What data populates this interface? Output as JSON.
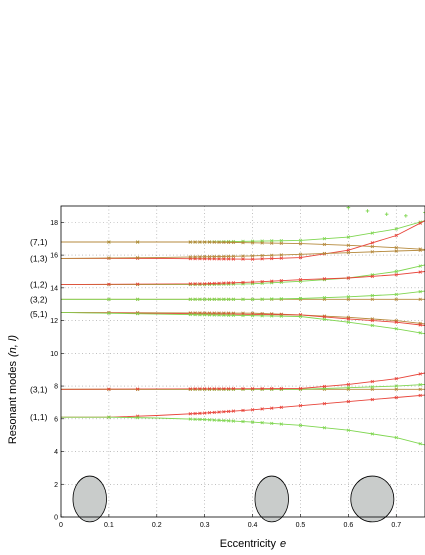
{
  "chart_data": {
    "type": "line",
    "title": "",
    "xlabel": "Eccentricity",
    "xlabel_var": "e",
    "ylabel": "Resonant modes",
    "ylabel_var": "(n, l)",
    "xlim": [
      0,
      0.76
    ],
    "ylim": [
      0,
      19
    ],
    "grid": true,
    "xticks": [
      0,
      0.1,
      0.2,
      0.3,
      0.4,
      0.5,
      0.6,
      0.7
    ],
    "xtick_labels": [
      "0",
      "0.1",
      "0.2",
      "0.3",
      "0.4",
      "0.5",
      "0.6",
      "0.7"
    ],
    "yticks": [
      0,
      2,
      4,
      6,
      8,
      10,
      12,
      14,
      16,
      18
    ],
    "ytick_labels": [
      "0",
      "2",
      "4",
      "6",
      "8",
      "10",
      "12",
      "14",
      "16",
      "18"
    ],
    "mode_labels": [
      {
        "text": "(7,1)",
        "y": 16.8
      },
      {
        "text": "(1,3)",
        "y": 15.8
      },
      {
        "text": "(1,2)",
        "y": 14.2
      },
      {
        "text": "(3,2)",
        "y": 13.3
      },
      {
        "text": "(5,1)",
        "y": 12.4
      },
      {
        "text": "(3,1)",
        "y": 7.8
      },
      {
        "text": "(1,1)",
        "y": 6.1
      }
    ],
    "markers_x": [
      0.1,
      0.16,
      0.27,
      0.28,
      0.29,
      0.3,
      0.31,
      0.32,
      0.33,
      0.34,
      0.35,
      0.36,
      0.38,
      0.4,
      0.42,
      0.44,
      0.46,
      0.5,
      0.55,
      0.6,
      0.65,
      0.7,
      0.75
    ],
    "series": [
      {
        "color": "#7fd650",
        "x": [
          0,
          0.3,
          0.5,
          0.6,
          0.7,
          0.76
        ],
        "values": [
          16.8,
          16.8,
          16.9,
          17.1,
          17.6,
          18.1
        ]
      },
      {
        "color": "#b5893c",
        "x": [
          0,
          0.3,
          0.5,
          0.6,
          0.7,
          0.76
        ],
        "values": [
          16.8,
          16.8,
          16.7,
          16.6,
          16.45,
          16.35
        ]
      },
      {
        "color": "#e8443a",
        "x": [
          0,
          0.2,
          0.4,
          0.5,
          0.6,
          0.7,
          0.76
        ],
        "values": [
          15.8,
          15.8,
          15.75,
          15.85,
          16.3,
          17.2,
          18.1
        ]
      },
      {
        "color": "#b5893c",
        "x": [
          0,
          0.2,
          0.4,
          0.5,
          0.6,
          0.7,
          0.76
        ],
        "values": [
          15.8,
          15.85,
          15.95,
          16.05,
          16.15,
          16.25,
          16.3
        ]
      },
      {
        "color": "#7fd650",
        "x": [
          0,
          0.3,
          0.4,
          0.5,
          0.6,
          0.7,
          0.76
        ],
        "values": [
          14.2,
          14.2,
          14.25,
          14.4,
          14.6,
          15.0,
          15.4
        ]
      },
      {
        "color": "#e8443a",
        "x": [
          0,
          0.3,
          0.4,
          0.5,
          0.6,
          0.7,
          0.76
        ],
        "values": [
          14.2,
          14.25,
          14.35,
          14.5,
          14.6,
          14.8,
          15.0
        ]
      },
      {
        "color": "#b5893c",
        "x": [
          0,
          0.4,
          0.5,
          0.6,
          0.7,
          0.76
        ],
        "values": [
          13.3,
          13.3,
          13.3,
          13.3,
          13.3,
          13.3
        ]
      },
      {
        "color": "#7fd650",
        "x": [
          0,
          0.4,
          0.5,
          0.6,
          0.7,
          0.76
        ],
        "values": [
          13.3,
          13.3,
          13.35,
          13.45,
          13.6,
          13.8
        ]
      },
      {
        "color": "#b5893c",
        "x": [
          0,
          0.4,
          0.5,
          0.6,
          0.7,
          0.76
        ],
        "values": [
          12.5,
          12.45,
          12.35,
          12.2,
          12.0,
          11.8
        ]
      },
      {
        "color": "#e8443a",
        "x": [
          0,
          0.5,
          0.6,
          0.7,
          0.76
        ],
        "values": [
          12.5,
          12.35,
          12.1,
          11.9,
          11.7
        ]
      },
      {
        "color": "#7fd650",
        "x": [
          0,
          0.5,
          0.6,
          0.7,
          0.76
        ],
        "values": [
          12.5,
          12.25,
          11.9,
          11.5,
          11.2
        ]
      },
      {
        "color": "#b5893c",
        "x": [
          0,
          0.5,
          0.6,
          0.7,
          0.76
        ],
        "values": [
          7.8,
          7.8,
          7.8,
          7.8,
          7.8
        ]
      },
      {
        "color": "#7fd650",
        "x": [
          0,
          0.5,
          0.6,
          0.7,
          0.76
        ],
        "values": [
          7.8,
          7.8,
          7.9,
          8.0,
          8.1
        ]
      },
      {
        "color": "#e8443a",
        "x": [
          0,
          0.5,
          0.6,
          0.7,
          0.76
        ],
        "values": [
          7.8,
          7.85,
          8.1,
          8.45,
          8.8
        ]
      },
      {
        "color": "#e8443a",
        "x": [
          0,
          0.1,
          0.2,
          0.3,
          0.4,
          0.5,
          0.6,
          0.7,
          0.76
        ],
        "values": [
          6.1,
          6.1,
          6.2,
          6.35,
          6.55,
          6.8,
          7.05,
          7.3,
          7.45
        ]
      },
      {
        "color": "#7fd650",
        "x": [
          0,
          0.1,
          0.2,
          0.3,
          0.4,
          0.5,
          0.6,
          0.7,
          0.76
        ],
        "values": [
          6.1,
          6.1,
          6.05,
          5.95,
          5.8,
          5.6,
          5.3,
          4.85,
          4.4
        ]
      }
    ],
    "scatter_points": {
      "color": "#7fd650",
      "x": [
        0.6,
        0.64,
        0.68,
        0.72,
        0.76
      ],
      "values": [
        18.9,
        18.7,
        18.5,
        18.4,
        18.6
      ]
    },
    "ellipses": [
      {
        "cx": 0.06,
        "cy": 1.1,
        "rx": 0.035,
        "ry": 1.4
      },
      {
        "cx": 0.44,
        "cy": 1.1,
        "rx": 0.035,
        "ry": 1.4
      },
      {
        "cx": 0.65,
        "cy": 1.1,
        "rx": 0.045,
        "ry": 1.4
      }
    ]
  }
}
